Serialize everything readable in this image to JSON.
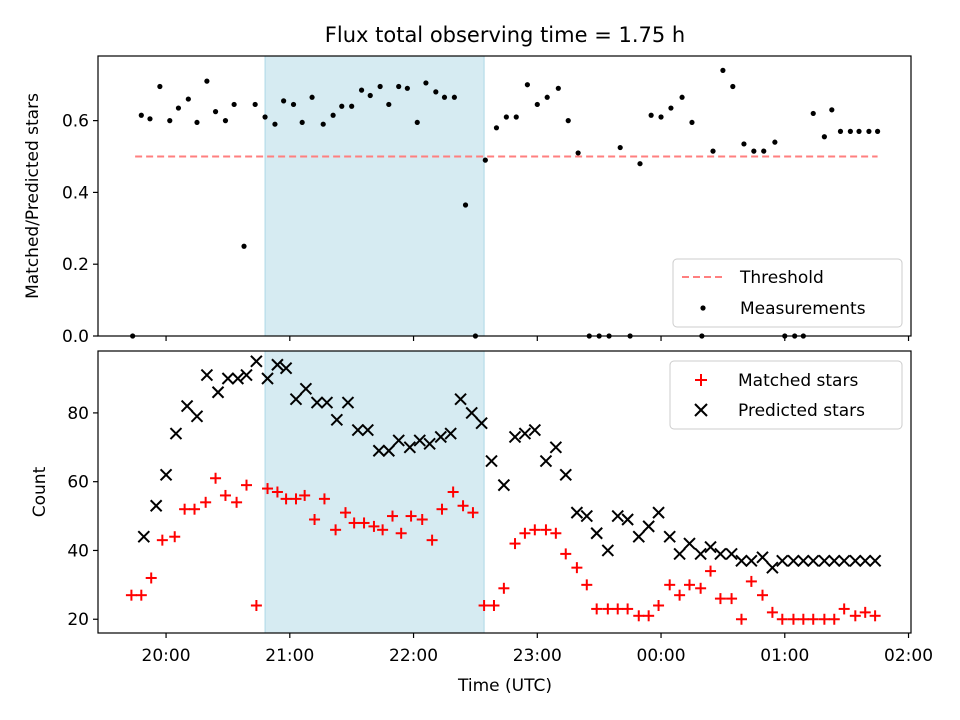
{
  "figure": {
    "title": "Flux total observing time = 1.75 h",
    "x_ticks": [
      "20:00",
      "21:00",
      "22:00",
      "23:00",
      "00:00",
      "01:00",
      "02:00"
    ],
    "x_tick_hours": [
      20,
      21,
      22,
      23,
      24,
      25,
      26
    ],
    "xlim_hours": [
      19.45,
      26.02
    ],
    "shaded_span_hours": [
      20.8,
      22.57
    ],
    "colors": {
      "shade": "#add8e6",
      "threshold": "#ff7f7f",
      "measurements": "#000000",
      "matched": "#ff0000",
      "predicted": "#000000"
    }
  },
  "chart_data": [
    {
      "type": "scatter",
      "title": "Flux total observing time = 1.75 h",
      "xlabel": "",
      "ylabel": "Matched/Predicted stars",
      "ylim": [
        0,
        0.78
      ],
      "y_ticks": [
        "0.0",
        "0.2",
        "0.4",
        "0.6"
      ],
      "y_tick_values": [
        0,
        0.2,
        0.4,
        0.6
      ],
      "legend_position": "lower-right",
      "threshold": {
        "name": "Threshold",
        "value": 0.5,
        "x_range_hours": [
          19.75,
          25.75
        ]
      },
      "series": [
        {
          "name": "Measurements",
          "marker": "dot",
          "x": [
            19.73,
            19.8,
            19.87,
            19.95,
            20.03,
            20.1,
            20.18,
            20.25,
            20.33,
            20.4,
            20.48,
            20.55,
            20.63,
            20.72,
            20.8,
            20.88,
            20.95,
            21.03,
            21.1,
            21.18,
            21.27,
            21.35,
            21.42,
            21.5,
            21.58,
            21.65,
            21.73,
            21.8,
            21.88,
            21.95,
            22.03,
            22.1,
            22.18,
            22.25,
            22.33,
            22.42,
            22.5,
            22.58,
            22.67,
            22.75,
            22.83,
            22.92,
            23.0,
            23.08,
            23.17,
            23.25,
            23.33,
            23.42,
            23.5,
            23.58,
            23.67,
            23.75,
            23.83,
            23.92,
            24.0,
            24.08,
            24.17,
            24.25,
            24.33,
            24.42,
            24.5,
            24.58,
            24.67,
            24.75,
            24.83,
            24.92,
            25.0,
            25.08,
            25.15,
            25.23,
            25.32,
            25.38,
            25.45,
            25.53,
            25.6,
            25.68,
            25.75
          ],
          "y": [
            0.0,
            0.615,
            0.605,
            0.695,
            0.6,
            0.635,
            0.66,
            0.595,
            0.71,
            0.625,
            0.6,
            0.645,
            0.25,
            0.645,
            0.61,
            0.59,
            0.655,
            0.645,
            0.595,
            0.665,
            0.59,
            0.615,
            0.64,
            0.64,
            0.685,
            0.67,
            0.695,
            0.645,
            0.695,
            0.69,
            0.595,
            0.705,
            0.68,
            0.665,
            0.665,
            0.365,
            0.0,
            0.49,
            0.58,
            0.61,
            0.61,
            0.7,
            0.645,
            0.665,
            0.69,
            0.6,
            0.51,
            0.0,
            0.0,
            0.0,
            0.525,
            0.0,
            0.48,
            0.615,
            0.61,
            0.635,
            0.665,
            0.595,
            0.0,
            0.515,
            0.74,
            0.695,
            0.535,
            0.515,
            0.515,
            0.54,
            0.0,
            0.0,
            0.0,
            0.62,
            0.555,
            0.63,
            0.57,
            0.57,
            0.57,
            0.57,
            0.57
          ]
        }
      ]
    },
    {
      "type": "scatter",
      "xlabel": "Time (UTC)",
      "ylabel": "Count",
      "ylim": [
        16,
        98
      ],
      "y_ticks": [
        "20",
        "40",
        "60",
        "80"
      ],
      "y_tick_values": [
        20,
        40,
        60,
        80
      ],
      "legend_position": "upper-right",
      "series": [
        {
          "name": "Matched stars",
          "marker": "plus",
          "x": [
            19.72,
            19.8,
            19.88,
            19.97,
            20.07,
            20.15,
            20.23,
            20.32,
            20.4,
            20.48,
            20.57,
            20.65,
            20.73,
            20.82,
            20.9,
            20.97,
            21.05,
            21.12,
            21.2,
            21.28,
            21.37,
            21.45,
            21.52,
            21.6,
            21.68,
            21.75,
            21.83,
            21.9,
            21.98,
            22.07,
            22.15,
            22.23,
            22.32,
            22.4,
            22.48,
            22.57,
            22.65,
            22.73,
            22.82,
            22.9,
            22.98,
            23.07,
            23.15,
            23.23,
            23.32,
            23.4,
            23.48,
            23.57,
            23.65,
            23.73,
            23.82,
            23.9,
            23.98,
            24.07,
            24.15,
            24.23,
            24.32,
            24.4,
            24.48,
            24.57,
            24.65,
            24.73,
            24.82,
            24.9,
            24.98,
            25.07,
            25.15,
            25.23,
            25.32,
            25.4,
            25.48,
            25.57,
            25.65,
            25.73
          ],
          "y": [
            27,
            27,
            32,
            43,
            44,
            52,
            52,
            54,
            61,
            56,
            54,
            59,
            24,
            58,
            57,
            55,
            55,
            56,
            49,
            55,
            46,
            51,
            48,
            48,
            47,
            46,
            50,
            45,
            50,
            49,
            43,
            52,
            57,
            53,
            51,
            24,
            24,
            29,
            42,
            45,
            46,
            46,
            45,
            39,
            35,
            30,
            23,
            23,
            23,
            23,
            21,
            21,
            24,
            30,
            27,
            30,
            29,
            34,
            26,
            26,
            20,
            31,
            27,
            22,
            20,
            20,
            20,
            20,
            20,
            20,
            23,
            21,
            22,
            21
          ]
        },
        {
          "name": "Predicted stars",
          "marker": "x",
          "x": [
            19.82,
            19.92,
            20.0,
            20.08,
            20.17,
            20.25,
            20.33,
            20.42,
            20.5,
            20.58,
            20.65,
            20.73,
            20.82,
            20.9,
            20.97,
            21.05,
            21.13,
            21.22,
            21.3,
            21.38,
            21.47,
            21.55,
            21.63,
            21.72,
            21.8,
            21.88,
            21.97,
            22.05,
            22.13,
            22.22,
            22.3,
            22.38,
            22.47,
            22.55,
            22.63,
            22.73,
            22.82,
            22.9,
            22.98,
            23.07,
            23.15,
            23.23,
            23.32,
            23.4,
            23.48,
            23.57,
            23.65,
            23.73,
            23.82,
            23.9,
            23.98,
            24.07,
            24.15,
            24.23,
            24.32,
            24.4,
            24.48,
            24.57,
            24.65,
            24.73,
            24.82,
            24.9,
            24.98,
            25.07,
            25.15,
            25.23,
            25.32,
            25.4,
            25.48,
            25.57,
            25.65,
            25.73
          ],
          "y": [
            44,
            53,
            62,
            74,
            82,
            79,
            91,
            86,
            90,
            90,
            91,
            95,
            90,
            94,
            93,
            84,
            87,
            83,
            83,
            78,
            83,
            75,
            75,
            69,
            69,
            72,
            70,
            72,
            71,
            73,
            74,
            84,
            80,
            77,
            66,
            59,
            73,
            74,
            75,
            66,
            70,
            62,
            51,
            50,
            45,
            40,
            50,
            49,
            44,
            47,
            51,
            44,
            39,
            42,
            39,
            41,
            39,
            39,
            37,
            37,
            38,
            35,
            37,
            37,
            37,
            37,
            37,
            37,
            37,
            37,
            37,
            37
          ]
        }
      ]
    }
  ]
}
